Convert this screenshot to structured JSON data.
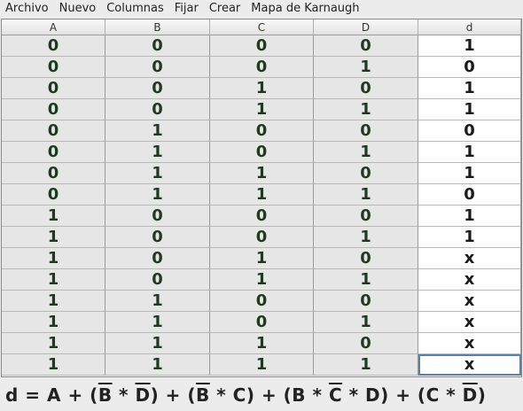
{
  "menu": [
    "Archivo",
    "Nuevo",
    "Columnas",
    "Fijar",
    "Crear",
    "Mapa de Karnaugh"
  ],
  "table": {
    "headers": [
      "A",
      "B",
      "C",
      "D",
      "d"
    ],
    "rows": [
      [
        "0",
        "0",
        "0",
        "0",
        "1"
      ],
      [
        "0",
        "0",
        "0",
        "1",
        "0"
      ],
      [
        "0",
        "0",
        "1",
        "0",
        "1"
      ],
      [
        "0",
        "0",
        "1",
        "1",
        "1"
      ],
      [
        "0",
        "1",
        "0",
        "0",
        "0"
      ],
      [
        "0",
        "1",
        "0",
        "1",
        "1"
      ],
      [
        "0",
        "1",
        "1",
        "0",
        "1"
      ],
      [
        "0",
        "1",
        "1",
        "1",
        "0"
      ],
      [
        "1",
        "0",
        "0",
        "0",
        "1"
      ],
      [
        "1",
        "0",
        "0",
        "1",
        "1"
      ],
      [
        "1",
        "0",
        "1",
        "0",
        "x"
      ],
      [
        "1",
        "0",
        "1",
        "1",
        "x"
      ],
      [
        "1",
        "1",
        "0",
        "0",
        "x"
      ],
      [
        "1",
        "1",
        "0",
        "1",
        "x"
      ],
      [
        "1",
        "1",
        "1",
        "0",
        "x"
      ],
      [
        "1",
        "1",
        "1",
        "1",
        "x"
      ]
    ]
  },
  "formula": {
    "segments": [
      {
        "t": "d = A + (",
        "ov": false
      },
      {
        "t": "B",
        "ov": true
      },
      {
        "t": " * ",
        "ov": false
      },
      {
        "t": "D",
        "ov": true
      },
      {
        "t": ") + (",
        "ov": false
      },
      {
        "t": "B",
        "ov": true
      },
      {
        "t": " * C) + (B * ",
        "ov": false
      },
      {
        "t": "C",
        "ov": true
      },
      {
        "t": " * D) + (C * ",
        "ov": false
      },
      {
        "t": "D",
        "ov": true
      },
      {
        "t": ")",
        "ov": false
      }
    ]
  }
}
